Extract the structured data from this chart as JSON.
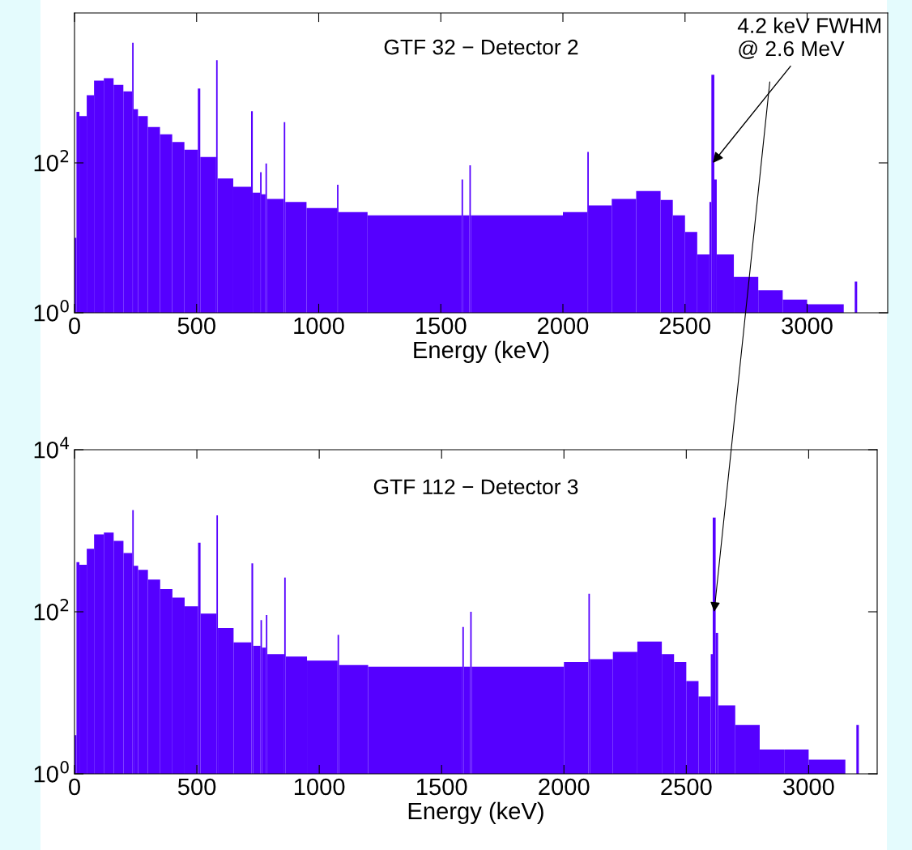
{
  "chart_data": [
    {
      "type": "histogram",
      "title": "GTF 32 − Detector 2",
      "xlabel": "Energy (keV)",
      "color": "#5500ff",
      "log": "y",
      "grid": false,
      "legend": false,
      "bins": [
        0,
        8,
        20,
        50,
        80,
        120,
        160,
        200,
        236,
        242,
        260,
        300,
        350,
        400,
        450,
        505,
        515,
        580,
        586,
        650,
        723,
        730,
        760,
        766,
        782,
        788,
        857,
        863,
        950,
        1075,
        1081,
        1200,
        1585,
        1591,
        1617,
        1623,
        2000,
        2100,
        2106,
        2200,
        2300,
        2400,
        2450,
        2500,
        2550,
        2600,
        2608,
        2620,
        2630,
        2700,
        2800,
        2900,
        3000,
        3150,
        3195,
        3205
      ],
      "values": [
        10,
        480,
        420,
        800,
        1250,
        1350,
        1100,
        900,
        4000,
        520,
        420,
        300,
        240,
        190,
        150,
        980,
        120,
        2350,
        62,
        48,
        490,
        40,
        75,
        38,
        98,
        33,
        350,
        30,
        25,
        51,
        22,
        20,
        60,
        20,
        93,
        20,
        22,
        140,
        27,
        33,
        42,
        32,
        20,
        12,
        6,
        30,
        1500,
        60,
        6,
        3,
        2,
        1.5,
        1.3,
        null,
        2.6
      ],
      "xlim": [
        0,
        3330
      ],
      "xticks": [
        0,
        500,
        1000,
        1500,
        2000,
        2500,
        3000
      ],
      "ylim": [
        1,
        10000
      ],
      "yticks": [
        {
          "value": 1,
          "label": "10$^{0}$"
        },
        {
          "value": 100,
          "label": "10$^{2}$"
        }
      ],
      "annotations": [
        {
          "text": "4.2 keV FWHM\n@ 2.6 MeV",
          "x": 2614,
          "y": 100
        }
      ]
    },
    {
      "type": "histogram",
      "title": "GTF 112 − Detector 3",
      "xlabel": "Energy (keV)",
      "color": "#5500ff",
      "log": "y",
      "grid": false,
      "legend": false,
      "bins": [
        0,
        8,
        20,
        50,
        80,
        120,
        160,
        200,
        236,
        242,
        260,
        300,
        350,
        400,
        450,
        505,
        515,
        580,
        586,
        650,
        723,
        730,
        760,
        766,
        782,
        788,
        857,
        863,
        950,
        1075,
        1081,
        1200,
        1585,
        1591,
        1617,
        1623,
        2000,
        2100,
        2106,
        2200,
        2300,
        2400,
        2450,
        2500,
        2550,
        2600,
        2608,
        2620,
        2630,
        2700,
        2800,
        2900,
        3000,
        3150,
        3195,
        3205
      ],
      "values": [
        3,
        410,
        380,
        600,
        900,
        950,
        750,
        530,
        1800,
        370,
        330,
        250,
        190,
        150,
        117,
        710,
        95,
        1550,
        63,
        42,
        395,
        38,
        79,
        36,
        91,
        30,
        265,
        28,
        25,
        52,
        22,
        21,
        65,
        21,
        100,
        21,
        24,
        167,
        26,
        32,
        43,
        30,
        24,
        14,
        9,
        30,
        1450,
        55,
        7,
        4,
        2,
        2,
        1.5,
        null,
        4
      ],
      "xlim": [
        0,
        3280
      ],
      "xticks": [
        0,
        500,
        1000,
        1500,
        2000,
        2500,
        3000
      ],
      "ylim": [
        1,
        10000
      ],
      "yticks": [
        {
          "value": 1,
          "label": "10$^{0}$"
        },
        {
          "value": 100,
          "label": "10$^{2}$"
        },
        {
          "value": 10000,
          "label": "10$^{4}$"
        }
      ]
    }
  ]
}
